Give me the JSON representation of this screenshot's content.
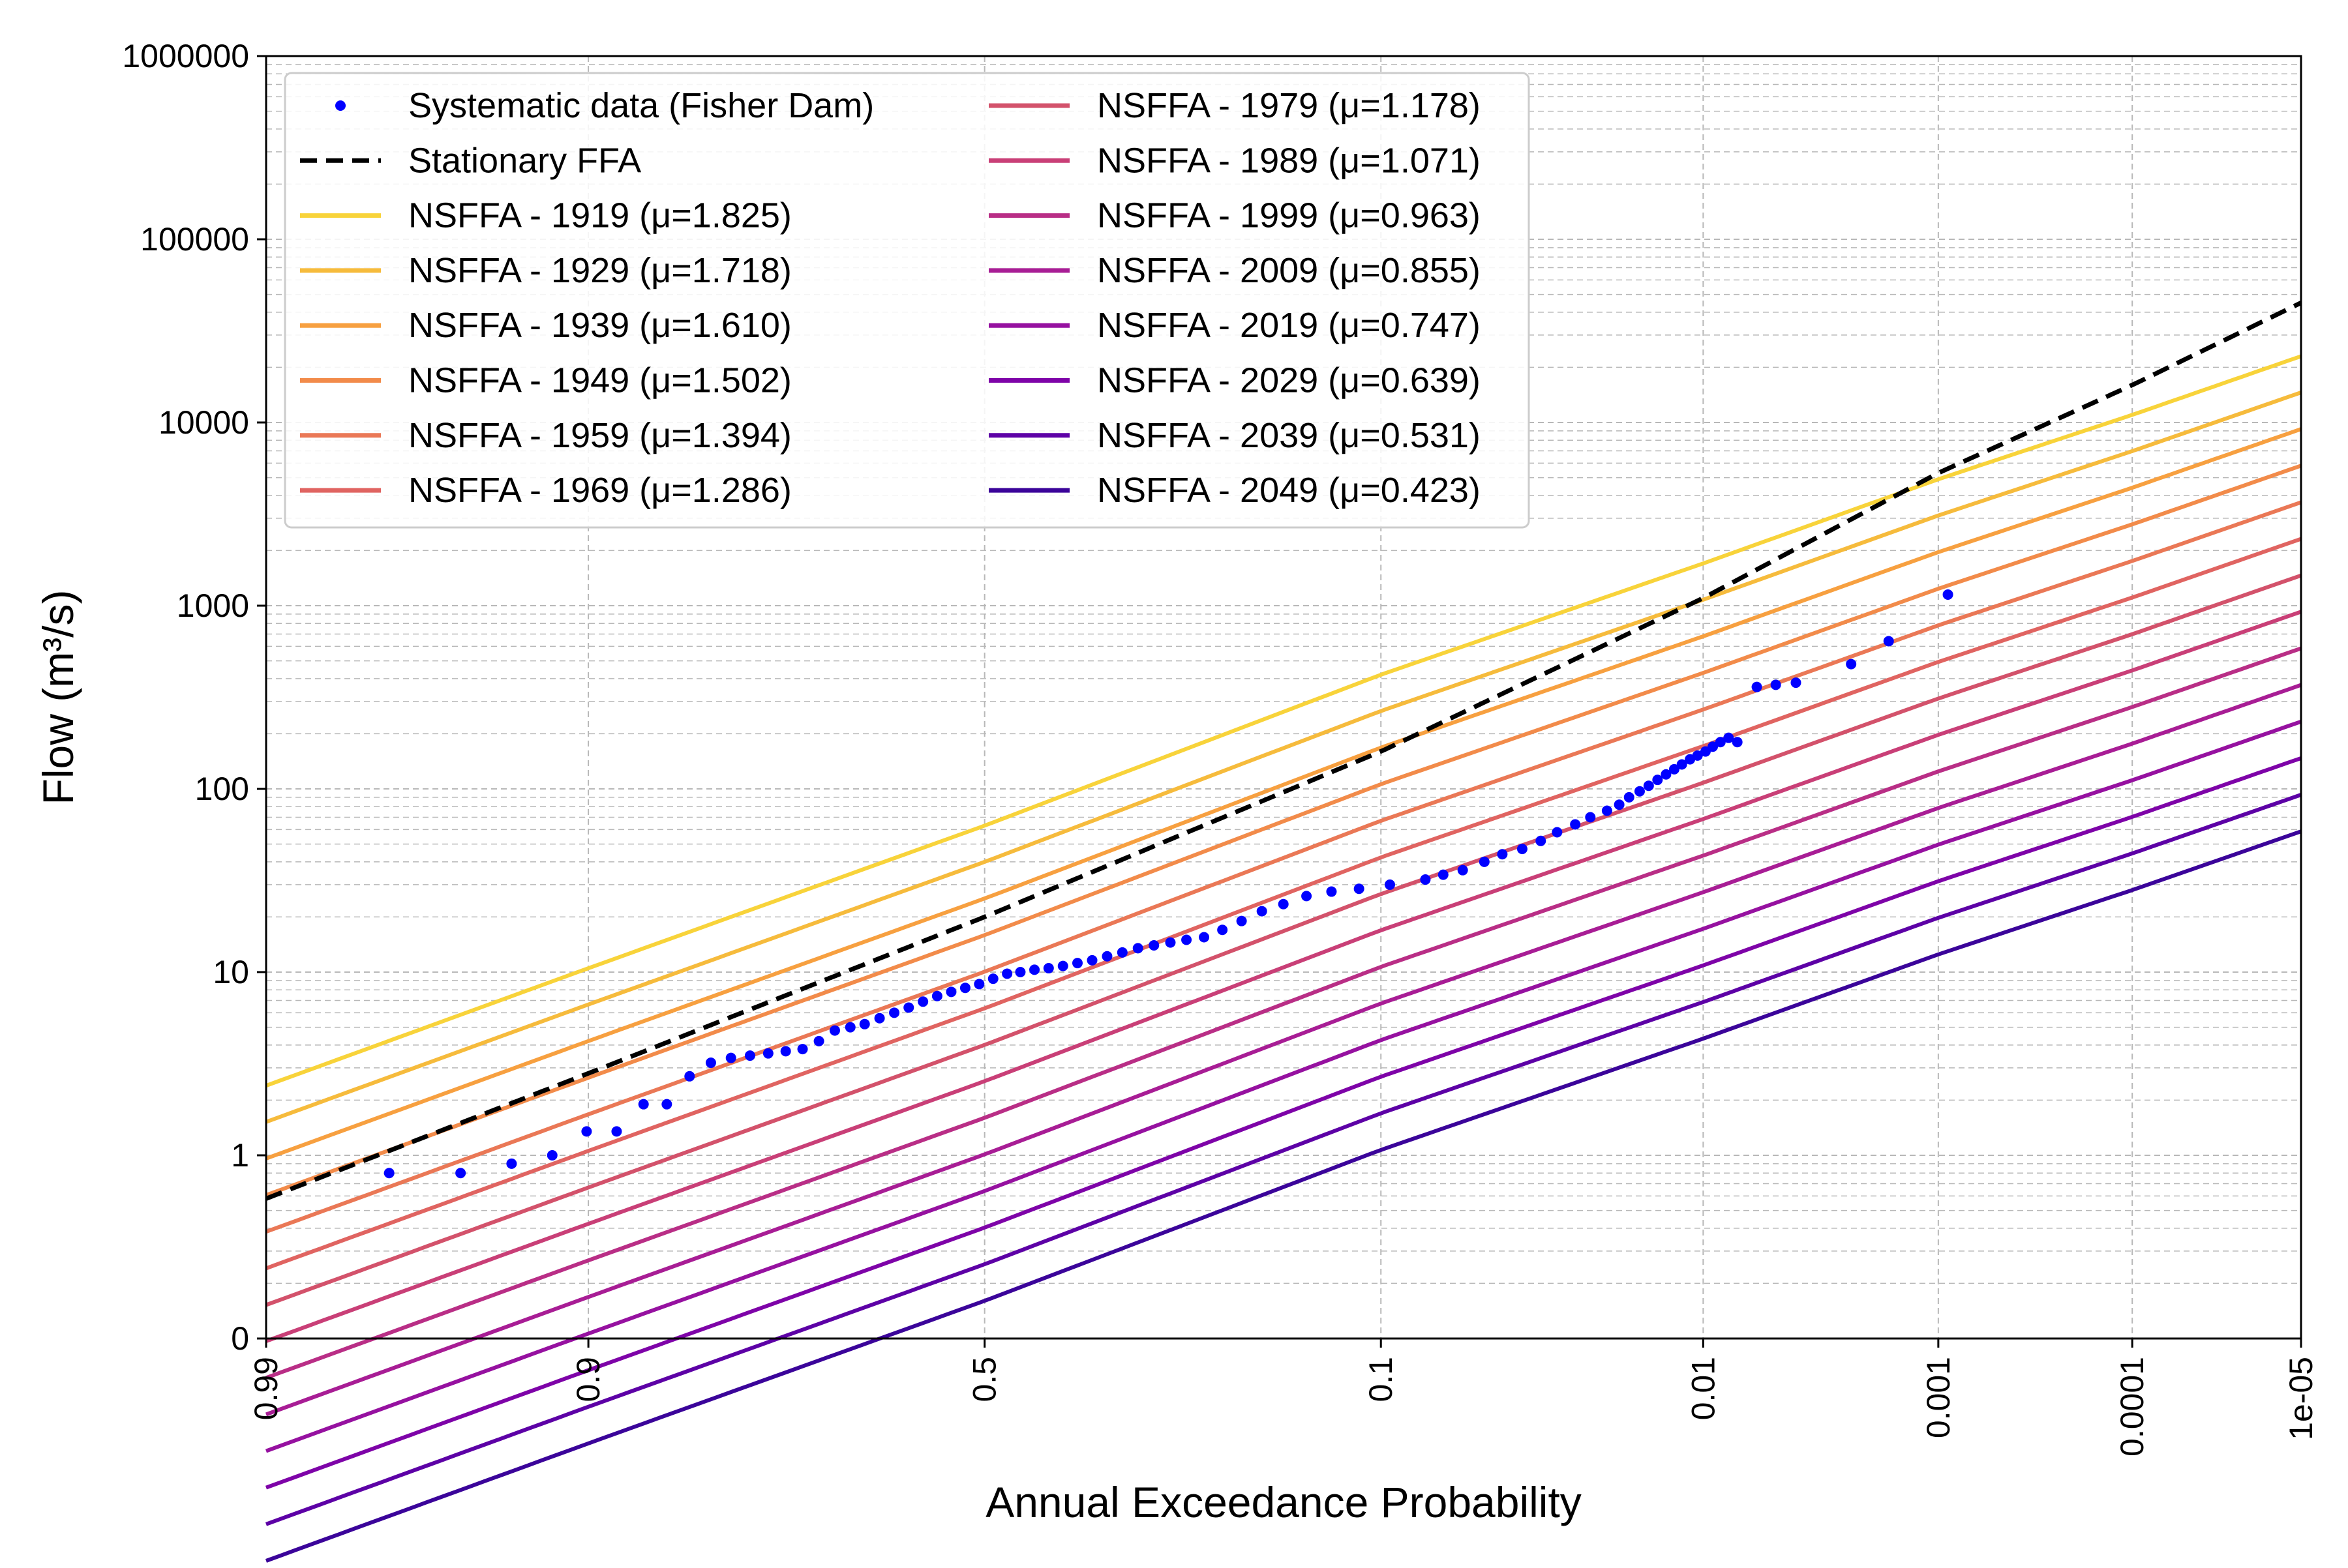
{
  "chart_data": {
    "type": "line",
    "title": "",
    "xlabel": "Annual Exceedance Probability",
    "ylabel": "Flow (m³/s)",
    "x_scale": "normal-probability (reversed)",
    "y_scale": "log",
    "xlim": [
      0.99,
      1e-05
    ],
    "ylim": [
      0.1,
      1000000
    ],
    "x_ticks": [
      {
        "value": 0.99,
        "label": "0.99"
      },
      {
        "value": 0.9,
        "label": "0.9"
      },
      {
        "value": 0.5,
        "label": "0.5"
      },
      {
        "value": 0.1,
        "label": "0.1"
      },
      {
        "value": 0.01,
        "label": "0.01"
      },
      {
        "value": 0.001,
        "label": "0.001"
      },
      {
        "value": 0.0001,
        "label": "0.0001"
      },
      {
        "value": 1e-05,
        "label": "1e-05"
      }
    ],
    "y_ticks": [
      {
        "value": 0.1,
        "label": "0"
      },
      {
        "value": 1,
        "label": "1"
      },
      {
        "value": 10,
        "label": "10"
      },
      {
        "value": 100,
        "label": "100"
      },
      {
        "value": 1000,
        "label": "1000"
      },
      {
        "value": 10000,
        "label": "10000"
      },
      {
        "value": 100000,
        "label": "100000"
      },
      {
        "value": 1000000,
        "label": "1000000"
      }
    ],
    "grid": true,
    "legend_placement": "top-left",
    "legend_columns": 2,
    "scatter": {
      "name": "Systematic data (Fisher Dam)",
      "color": "#0000ff",
      "points": [
        [
          0.973,
          0.8
        ],
        [
          0.955,
          0.8
        ],
        [
          0.937,
          0.9
        ],
        [
          0.919,
          1.0
        ],
        [
          0.901,
          1.35
        ],
        [
          0.883,
          1.35
        ],
        [
          0.865,
          1.9
        ],
        [
          0.848,
          1.9
        ],
        [
          0.83,
          2.7
        ],
        [
          0.812,
          3.2
        ],
        [
          0.794,
          3.4
        ],
        [
          0.776,
          3.5
        ],
        [
          0.758,
          3.6
        ],
        [
          0.74,
          3.7
        ],
        [
          0.722,
          3.8
        ],
        [
          0.704,
          4.2
        ],
        [
          0.686,
          4.8
        ],
        [
          0.668,
          5.0
        ],
        [
          0.651,
          5.2
        ],
        [
          0.633,
          5.6
        ],
        [
          0.615,
          6.0
        ],
        [
          0.597,
          6.4
        ],
        [
          0.579,
          6.9
        ],
        [
          0.561,
          7.4
        ],
        [
          0.543,
          7.8
        ],
        [
          0.525,
          8.2
        ],
        [
          0.507,
          8.6
        ],
        [
          0.489,
          9.2
        ],
        [
          0.471,
          9.8
        ],
        [
          0.454,
          10.0
        ],
        [
          0.436,
          10.3
        ],
        [
          0.418,
          10.5
        ],
        [
          0.4,
          10.8
        ],
        [
          0.382,
          11.2
        ],
        [
          0.364,
          11.6
        ],
        [
          0.346,
          12.2
        ],
        [
          0.328,
          12.8
        ],
        [
          0.31,
          13.5
        ],
        [
          0.292,
          14.0
        ],
        [
          0.274,
          14.5
        ],
        [
          0.257,
          15.0
        ],
        [
          0.239,
          15.5
        ],
        [
          0.221,
          17.0
        ],
        [
          0.203,
          19.0
        ],
        [
          0.185,
          21.5
        ],
        [
          0.167,
          23.5
        ],
        [
          0.149,
          26.0
        ],
        [
          0.131,
          27.5
        ],
        [
          0.113,
          28.5
        ],
        [
          0.095,
          30.0
        ],
        [
          0.077,
          32.0
        ],
        [
          0.069,
          34.0
        ],
        [
          0.061,
          36.0
        ],
        [
          0.053,
          40.0
        ],
        [
          0.047,
          44.0
        ],
        [
          0.041,
          47.0
        ],
        [
          0.036,
          52.0
        ],
        [
          0.032,
          58.0
        ],
        [
          0.028,
          64.0
        ],
        [
          0.025,
          70.0
        ],
        [
          0.022,
          76.0
        ],
        [
          0.02,
          82.0
        ],
        [
          0.0185,
          90.0
        ],
        [
          0.017,
          97.0
        ],
        [
          0.0158,
          104.0
        ],
        [
          0.0147,
          112.0
        ],
        [
          0.0137,
          120.0
        ],
        [
          0.0128,
          128.0
        ],
        [
          0.012,
          136.0
        ],
        [
          0.0112,
          145.0
        ],
        [
          0.0105,
          152.0
        ],
        [
          0.0098,
          160.0
        ],
        [
          0.0092,
          170.0
        ],
        [
          0.0086,
          180.0
        ],
        [
          0.008,
          190.0
        ],
        [
          0.0074,
          180.0
        ],
        [
          0.0062,
          360.0
        ],
        [
          0.0052,
          370.0
        ],
        [
          0.0043,
          380.0
        ],
        [
          0.0025,
          480.0
        ],
        [
          0.0017,
          640.0
        ],
        [
          0.0009,
          1150.0
        ]
      ]
    },
    "series": [
      {
        "name": "Stationary FFA",
        "style": "dashed",
        "color": "#000000",
        "mu": null,
        "x": [
          0.99,
          0.9,
          0.5,
          0.1,
          0.01,
          0.001,
          0.0001,
          1e-05
        ],
        "values": [
          0.58,
          2.8,
          20,
          160,
          1100,
          5300,
          16000,
          45000
        ]
      },
      {
        "name": "NSFFA - 1919 (μ=1.825)",
        "color": "#f8d33a",
        "mu": 1.825
      },
      {
        "name": "NSFFA - 1929 (μ=1.718)",
        "color": "#f6bb3c",
        "mu": 1.718
      },
      {
        "name": "NSFFA - 1939 (μ=1.610)",
        "color": "#f7a040",
        "mu": 1.61
      },
      {
        "name": "NSFFA - 1949 (μ=1.502)",
        "color": "#f28b4a",
        "mu": 1.502
      },
      {
        "name": "NSFFA - 1959 (μ=1.394)",
        "color": "#ea7856",
        "mu": 1.394
      },
      {
        "name": "NSFFA - 1969 (μ=1.286)",
        "color": "#e06461",
        "mu": 1.286
      },
      {
        "name": "NSFFA - 1979 (μ=1.178)",
        "color": "#d3526b",
        "mu": 1.178
      },
      {
        "name": "NSFFA - 1989 (μ=1.071)",
        "color": "#c93f77",
        "mu": 1.071
      },
      {
        "name": "NSFFA - 1999 (μ=0.963)",
        "color": "#b92e86",
        "mu": 0.963
      },
      {
        "name": "NSFFA - 2009 (μ=0.855)",
        "color": "#a81d95",
        "mu": 0.855
      },
      {
        "name": "NSFFA - 2019 (μ=0.747)",
        "color": "#9611a0",
        "mu": 0.747
      },
      {
        "name": "NSFFA - 2029 (μ=0.639)",
        "color": "#7e03a8",
        "mu": 0.639
      },
      {
        "name": "NSFFA - 2039 (μ=0.531)",
        "color": "#5d01a6",
        "mu": 0.531
      },
      {
        "name": "NSFFA - 2049 (μ=0.423)",
        "color": "#3b049a",
        "mu": 0.423
      }
    ],
    "nsffa_reference": {
      "x": [
        0.99,
        0.9,
        0.5,
        0.1,
        0.01,
        0.001,
        0.0001,
        1e-05
      ],
      "mu": 1.825,
      "values": [
        2.4,
        10.5,
        63,
        420,
        1700,
        4900,
        11000,
        23000
      ],
      "step_per_decade_mu": 0.108
    }
  }
}
